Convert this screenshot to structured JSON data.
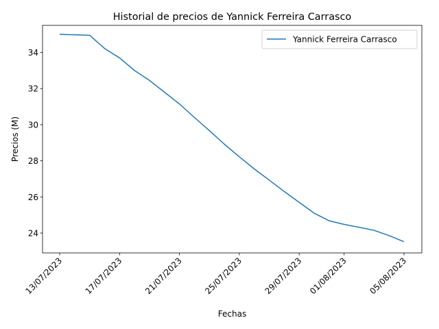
{
  "chart_data": {
    "type": "line",
    "title": "Historial de precios de Yannick Ferreira Carrasco",
    "xlabel": "Fechas",
    "ylabel": "Precios (M)",
    "x_ticks": [
      "13/07/2023",
      "17/07/2023",
      "21/07/2023",
      "25/07/2023",
      "29/07/2023",
      "01/08/2023",
      "05/08/2023"
    ],
    "x_tick_days": [
      0,
      4,
      8,
      12,
      16,
      19,
      23
    ],
    "ylim": [
      22.9,
      35.5
    ],
    "y_ticks": [
      24,
      26,
      28,
      30,
      32,
      34
    ],
    "grid": false,
    "legend_position": "top-right",
    "series": [
      {
        "name": "Yannick Ferreira Carrasco",
        "color": "#1f77b4",
        "x": [
          0,
          1,
          2,
          3,
          4,
          5,
          6,
          7,
          8,
          9,
          10,
          11,
          12,
          13,
          14,
          15,
          16,
          17,
          18,
          19,
          20,
          21,
          22,
          23
        ],
        "y": [
          35.0,
          34.98,
          34.95,
          34.22,
          33.7,
          33.0,
          32.45,
          31.8,
          31.15,
          30.4,
          29.67,
          28.92,
          28.22,
          27.55,
          26.93,
          26.3,
          25.7,
          25.1,
          24.68,
          24.48,
          24.32,
          24.15,
          23.86,
          23.52
        ]
      }
    ]
  }
}
